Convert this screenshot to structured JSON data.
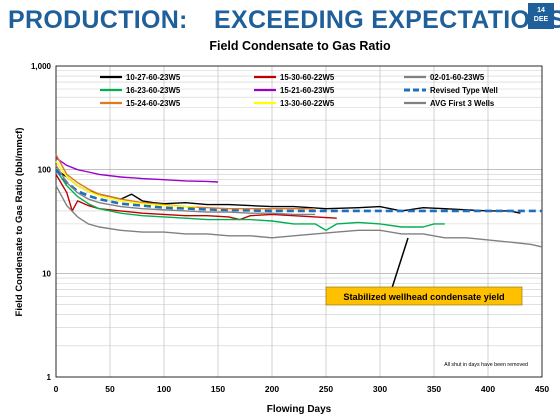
{
  "header": {
    "title_left": "PRODUCTION:",
    "title_right": "EXCEEDING EXPECTATIONS",
    "slide_number": "14",
    "slide_code": "DEE"
  },
  "chart_data": {
    "type": "line",
    "title": "Field Condensate to Gas Ratio",
    "xlabel": "Flowing Days",
    "ylabel": "Field Condensate to Gas Ratio (bbl/mmcf)",
    "xlim": [
      0,
      450
    ],
    "ylim": [
      1,
      1000
    ],
    "yscale": "log",
    "x_ticks": [
      "0",
      "50",
      "100",
      "150",
      "200",
      "250",
      "300",
      "350",
      "400",
      "450"
    ],
    "y_ticks": [
      "1",
      "10",
      "100",
      "1,000"
    ],
    "grid": true,
    "legend_position": "top",
    "annotations": {
      "callout": "Stabilized wellhead condensate yield",
      "note": "All shut in days have been removed"
    },
    "series": [
      {
        "name": "10-27-60-23W5",
        "color": "#000000",
        "dashed": false,
        "points": [
          [
            0,
            100
          ],
          [
            10,
            85
          ],
          [
            20,
            70
          ],
          [
            30,
            62
          ],
          [
            40,
            58
          ],
          [
            50,
            55
          ],
          [
            60,
            52
          ],
          [
            70,
            58
          ],
          [
            80,
            50
          ],
          [
            90,
            48
          ],
          [
            100,
            47
          ],
          [
            120,
            48
          ],
          [
            140,
            46
          ],
          [
            160,
            46
          ],
          [
            180,
            45
          ],
          [
            200,
            44
          ],
          [
            220,
            44
          ],
          [
            250,
            42
          ],
          [
            280,
            43
          ],
          [
            300,
            44
          ],
          [
            320,
            40
          ],
          [
            340,
            43
          ],
          [
            360,
            42
          ],
          [
            380,
            41
          ],
          [
            400,
            40
          ],
          [
            420,
            40
          ],
          [
            430,
            38
          ]
        ]
      },
      {
        "name": "15-30-60-22W5",
        "color": "#c00000",
        "dashed": false,
        "points": [
          [
            0,
            90
          ],
          [
            10,
            60
          ],
          [
            15,
            40
          ],
          [
            20,
            50
          ],
          [
            30,
            45
          ],
          [
            40,
            42
          ],
          [
            60,
            40
          ],
          [
            80,
            38
          ],
          [
            100,
            37
          ],
          [
            120,
            36
          ],
          [
            140,
            36
          ],
          [
            160,
            35
          ],
          [
            170,
            33
          ],
          [
            180,
            36
          ],
          [
            200,
            37
          ],
          [
            220,
            36
          ],
          [
            240,
            35
          ],
          [
            260,
            34
          ]
        ]
      },
      {
        "name": "02-01-60-23W5",
        "color": "#808080",
        "dashed": false,
        "points": [
          [
            0,
            70
          ],
          [
            10,
            45
          ],
          [
            20,
            35
          ],
          [
            30,
            30
          ],
          [
            40,
            28
          ],
          [
            60,
            26
          ],
          [
            80,
            25
          ],
          [
            100,
            25
          ],
          [
            120,
            24
          ],
          [
            140,
            24
          ],
          [
            160,
            23
          ],
          [
            180,
            23
          ],
          [
            200,
            22
          ],
          [
            220,
            23
          ],
          [
            240,
            24
          ],
          [
            260,
            25
          ],
          [
            280,
            26
          ],
          [
            300,
            26
          ],
          [
            320,
            24
          ],
          [
            340,
            24
          ],
          [
            360,
            22
          ],
          [
            380,
            22
          ],
          [
            400,
            21
          ],
          [
            420,
            20
          ],
          [
            440,
            19
          ],
          [
            450,
            18
          ]
        ]
      },
      {
        "name": "16-23-60-23W5",
        "color": "#00b050",
        "dashed": false,
        "points": [
          [
            0,
            100
          ],
          [
            10,
            70
          ],
          [
            20,
            55
          ],
          [
            30,
            47
          ],
          [
            40,
            42
          ],
          [
            60,
            38
          ],
          [
            80,
            36
          ],
          [
            100,
            35
          ],
          [
            120,
            34
          ],
          [
            140,
            33
          ],
          [
            160,
            33
          ],
          [
            180,
            33
          ],
          [
            200,
            32
          ],
          [
            220,
            30
          ],
          [
            240,
            30
          ],
          [
            250,
            26
          ],
          [
            260,
            30
          ],
          [
            280,
            31
          ],
          [
            300,
            30
          ],
          [
            320,
            28
          ],
          [
            340,
            28
          ],
          [
            350,
            30
          ],
          [
            360,
            30
          ]
        ]
      },
      {
        "name": "15-21-60-23W5",
        "color": "#9900cc",
        "dashed": false,
        "points": [
          [
            0,
            130
          ],
          [
            10,
            110
          ],
          [
            20,
            100
          ],
          [
            30,
            95
          ],
          [
            40,
            90
          ],
          [
            60,
            85
          ],
          [
            80,
            82
          ],
          [
            100,
            80
          ],
          [
            120,
            78
          ],
          [
            140,
            77
          ],
          [
            150,
            76
          ]
        ]
      },
      {
        "name": "Revised Type Well",
        "color": "#1f6fbf",
        "dashed": true,
        "points": [
          [
            0,
            100
          ],
          [
            10,
            75
          ],
          [
            20,
            62
          ],
          [
            30,
            56
          ],
          [
            40,
            52
          ],
          [
            60,
            47
          ],
          [
            80,
            45
          ],
          [
            100,
            43
          ],
          [
            150,
            41
          ],
          [
            200,
            40
          ],
          [
            250,
            40
          ],
          [
            300,
            40
          ],
          [
            350,
            40
          ],
          [
            400,
            40
          ],
          [
            450,
            40
          ]
        ]
      },
      {
        "name": "15-24-60-23W5",
        "color": "#e07820",
        "dashed": false,
        "points": [
          [
            0,
            140
          ],
          [
            10,
            90
          ],
          [
            20,
            75
          ],
          [
            30,
            65
          ],
          [
            40,
            58
          ],
          [
            60,
            52
          ],
          [
            80,
            48
          ],
          [
            100,
            46
          ],
          [
            120,
            44
          ],
          [
            140,
            43
          ],
          [
            160,
            42
          ],
          [
            180,
            42
          ],
          [
            200,
            42
          ],
          [
            220,
            42
          ],
          [
            240,
            42
          ]
        ]
      },
      {
        "name": "13-30-60-22W5",
        "color": "#ffff00",
        "dashed": false,
        "points": [
          [
            0,
            120
          ],
          [
            10,
            85
          ],
          [
            20,
            70
          ],
          [
            30,
            62
          ],
          [
            40,
            56
          ],
          [
            60,
            50
          ],
          [
            80,
            47
          ],
          [
            100,
            45
          ],
          [
            120,
            44
          ],
          [
            130,
            44
          ]
        ]
      },
      {
        "name": "AVG First 3 Wells",
        "color": "#808080",
        "dashed": false,
        "points": [
          [
            0,
            110
          ],
          [
            10,
            75
          ],
          [
            20,
            60
          ],
          [
            30,
            52
          ],
          [
            40,
            48
          ],
          [
            60,
            44
          ],
          [
            80,
            42
          ],
          [
            100,
            41
          ],
          [
            120,
            40
          ],
          [
            140,
            39
          ],
          [
            160,
            39
          ],
          [
            180,
            38
          ],
          [
            200,
            38
          ],
          [
            220,
            37
          ],
          [
            240,
            37
          ]
        ]
      }
    ]
  }
}
